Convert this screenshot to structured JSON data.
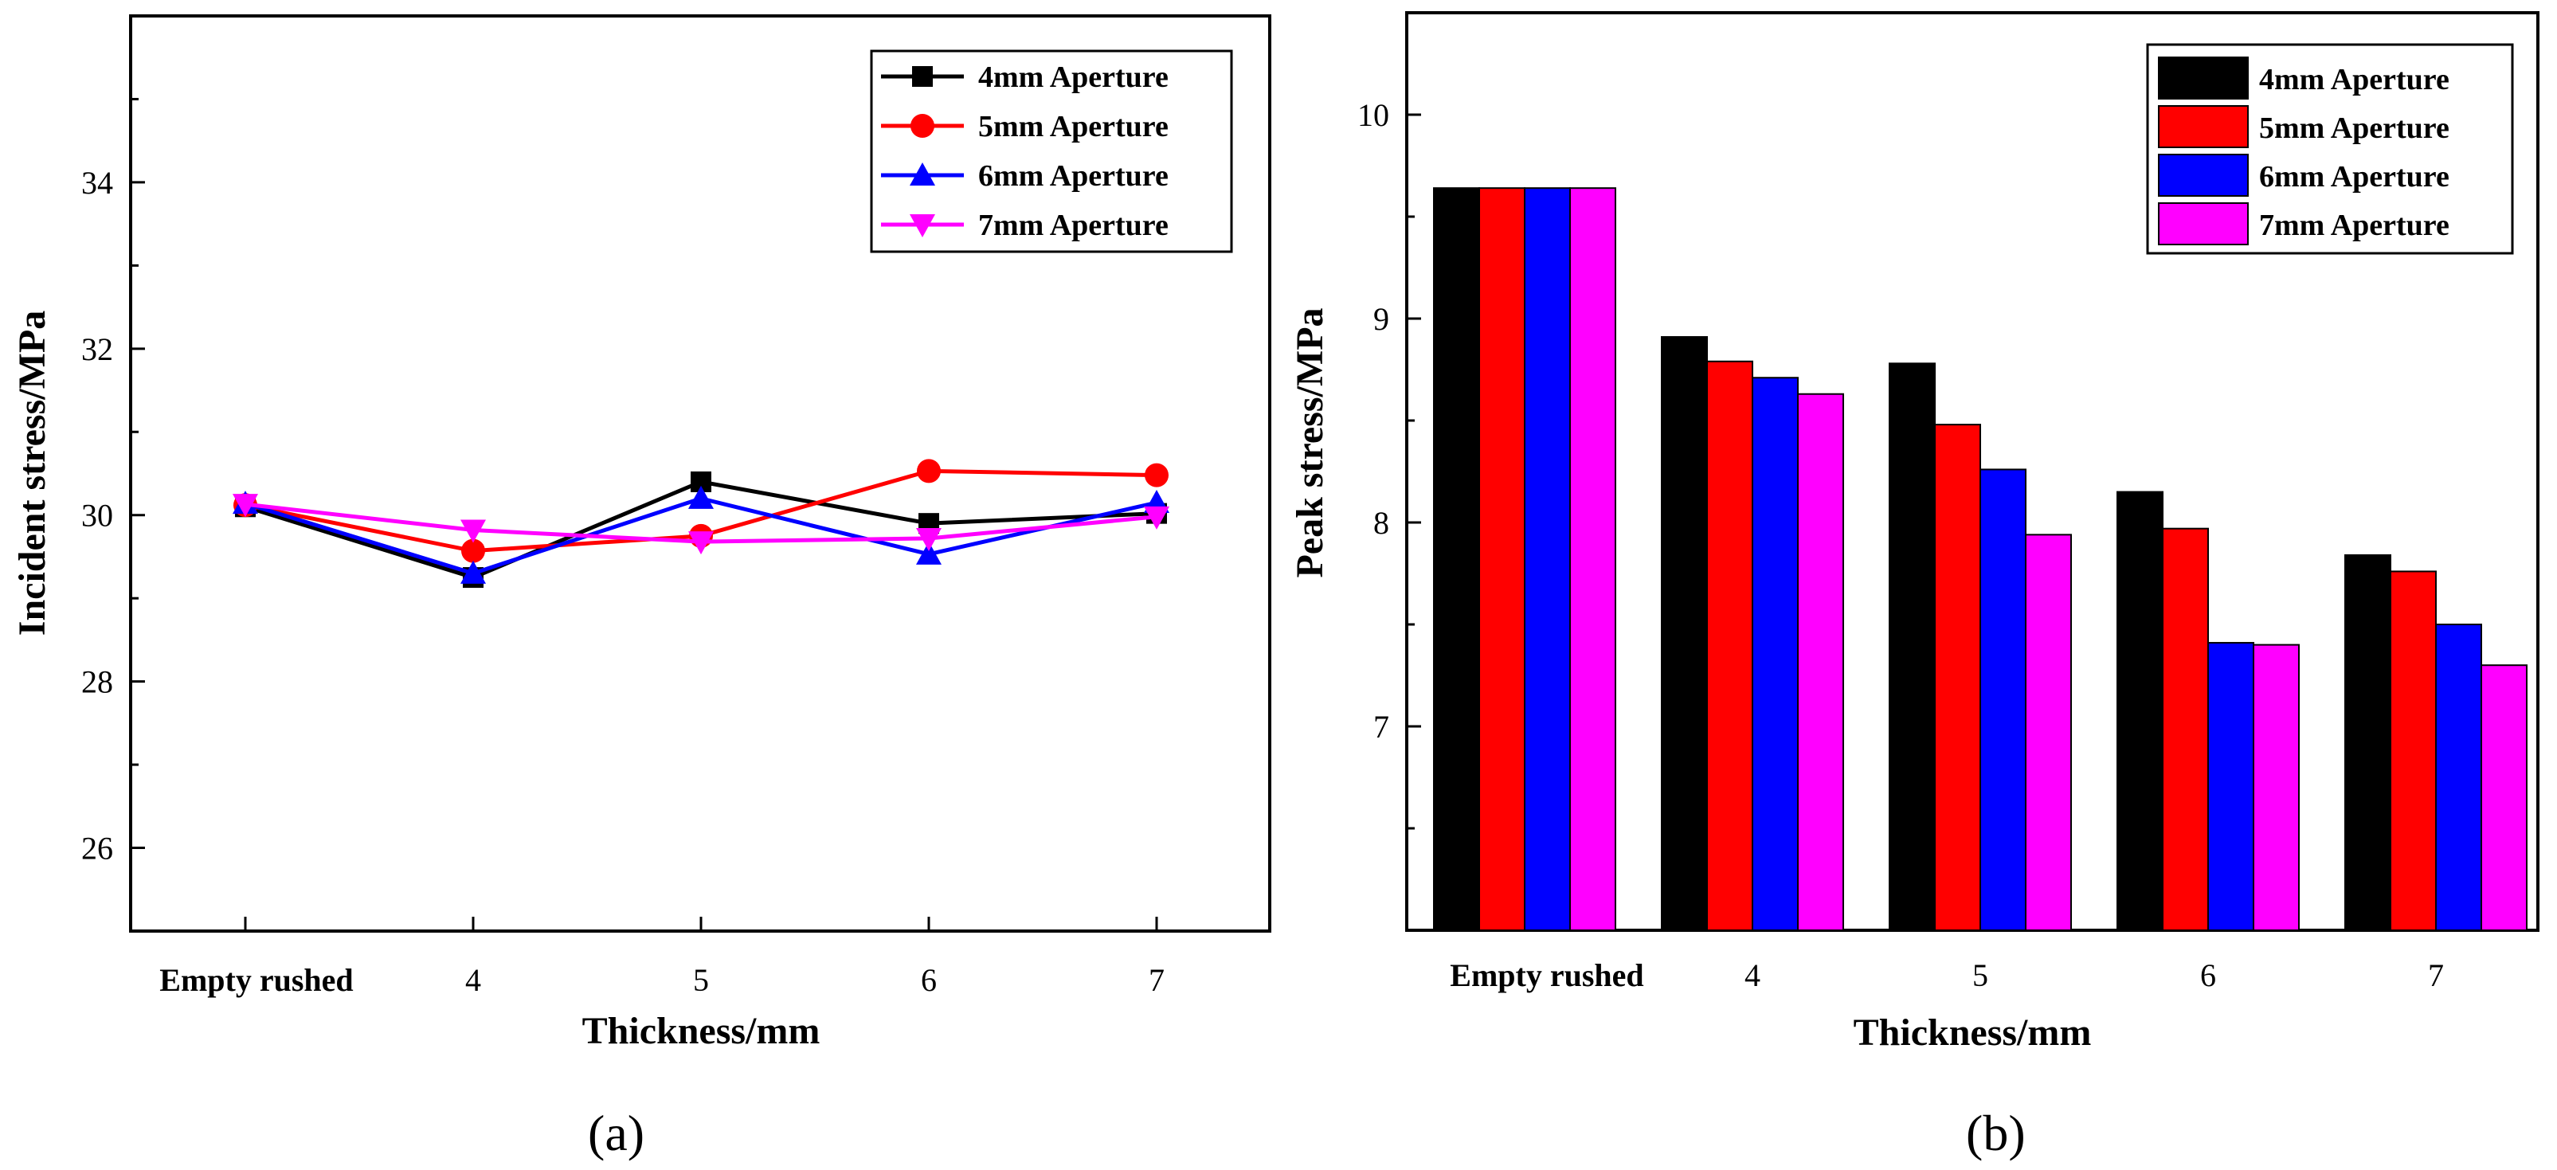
{
  "chart_data": [
    {
      "type": "line",
      "panel": "(a)",
      "xlabel": "Thickness/mm",
      "ylabel": "Incident stress/MPa",
      "categories": [
        "Empty rushed",
        "4",
        "5",
        "6",
        "7"
      ],
      "ylim": [
        25,
        36
      ],
      "yticks": [
        26,
        28,
        30,
        32,
        34
      ],
      "series": [
        {
          "name": "4mm Aperture",
          "color": "#000000",
          "marker": "square",
          "values": [
            30.1,
            29.25,
            30.4,
            29.9,
            30.02
          ]
        },
        {
          "name": "5mm Aperture",
          "color": "#ff0000",
          "marker": "circle",
          "values": [
            30.12,
            29.57,
            29.75,
            30.53,
            30.48
          ]
        },
        {
          "name": "6mm Aperture",
          "color": "#0000ff",
          "marker": "triangle-up",
          "values": [
            30.14,
            29.3,
            30.2,
            29.53,
            30.15
          ]
        },
        {
          "name": "7mm Aperture",
          "color": "#ff00ff",
          "marker": "triangle-down",
          "values": [
            30.13,
            29.82,
            29.68,
            29.72,
            29.98
          ]
        }
      ],
      "legend_position": "top-right"
    },
    {
      "type": "bar",
      "panel": "(b)",
      "xlabel": "Thickness/mm",
      "ylabel": "Peak stress/MPa",
      "categories": [
        "Empty rushed",
        "4",
        "5",
        "6",
        "7"
      ],
      "ylim": [
        6,
        10.5
      ],
      "yticks": [
        7,
        8,
        9,
        10
      ],
      "series": [
        {
          "name": "4mm Aperture",
          "color": "#000000",
          "values": [
            9.64,
            8.91,
            8.78,
            8.15,
            7.84
          ]
        },
        {
          "name": "5mm Aperture",
          "color": "#ff0000",
          "values": [
            9.64,
            8.79,
            8.48,
            7.97,
            7.76
          ]
        },
        {
          "name": "6mm Aperture",
          "color": "#0000ff",
          "values": [
            9.64,
            8.71,
            8.26,
            7.41,
            7.5
          ]
        },
        {
          "name": "7mm Aperture",
          "color": "#ff00ff",
          "values": [
            9.64,
            8.63,
            7.94,
            7.4,
            7.3
          ]
        }
      ],
      "legend_position": "top-right"
    }
  ]
}
